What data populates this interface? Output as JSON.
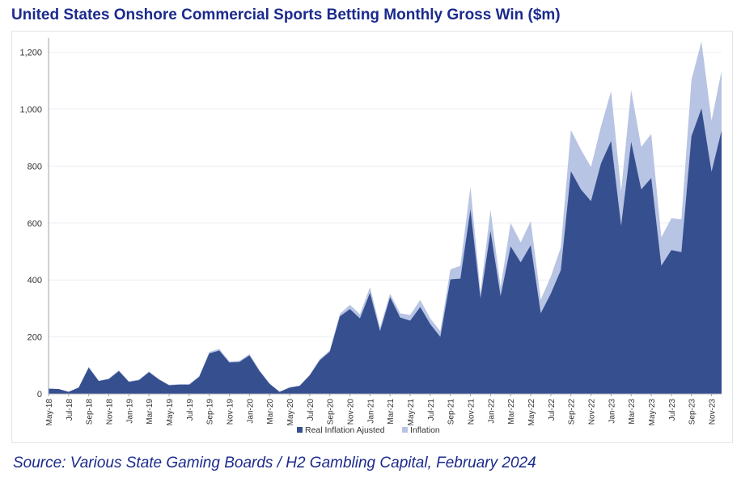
{
  "title": "United States Onshore Commercial Sports Betting Monthly Gross Win ($m)",
  "source": "Source: Various State Gaming Boards / H2 Gambling Capital, February 2024",
  "colors": {
    "real": "#354f8f",
    "inflation": "#b8c4e3",
    "title": "#1b2a8c",
    "grid": "#eceef3",
    "axis_text": "#333333"
  },
  "chart_data": {
    "type": "area",
    "stacked": true,
    "title": "United States Onshore Commercial Sports Betting Monthly Gross Win ($m)",
    "ylim": [
      0,
      1250
    ],
    "yticks": [
      0,
      200,
      400,
      600,
      800,
      1000,
      1200
    ],
    "ytick_labels": [
      "0",
      "200",
      "400",
      "600",
      "800",
      "1,000",
      "1,200"
    ],
    "grid": true,
    "legend_position": "bottom",
    "x": [
      "May-18",
      "Jun-18",
      "Jul-18",
      "Aug-18",
      "Sep-18",
      "Oct-18",
      "Nov-18",
      "Dec-18",
      "Jan-19",
      "Feb-19",
      "Mar-19",
      "Apr-19",
      "May-19",
      "Jun-19",
      "Jul-19",
      "Aug-19",
      "Sep-19",
      "Oct-19",
      "Nov-19",
      "Dec-19",
      "Jan-20",
      "Feb-20",
      "Mar-20",
      "Apr-20",
      "May-20",
      "Jun-20",
      "Jul-20",
      "Aug-20",
      "Sep-20",
      "Oct-20",
      "Nov-20",
      "Dec-20",
      "Jan-21",
      "Feb-21",
      "Mar-21",
      "Apr-21",
      "May-21",
      "Jun-21",
      "Jul-21",
      "Aug-21",
      "Sep-21",
      "Oct-21",
      "Nov-21",
      "Dec-21",
      "Jan-22",
      "Feb-22",
      "Mar-22",
      "Apr-22",
      "May-22",
      "Jun-22",
      "Jul-22",
      "Aug-22",
      "Sep-22",
      "Oct-22",
      "Nov-22",
      "Dec-22",
      "Jan-23",
      "Feb-23",
      "Mar-23",
      "Apr-23",
      "May-23",
      "Jun-23",
      "Jul-23",
      "Aug-23",
      "Sep-23",
      "Oct-23",
      "Nov-23",
      "Dec-23"
    ],
    "xtick_labels": [
      "May-18",
      "Jul-18",
      "Sep-18",
      "Nov-18",
      "Jan-19",
      "Mar-19",
      "May-19",
      "Jul-19",
      "Sep-19",
      "Nov-19",
      "Jan-20",
      "Mar-20",
      "May-20",
      "Jul-20",
      "Sep-20",
      "Nov-20",
      "Jan-21",
      "Mar-21",
      "May-21",
      "Jul-21",
      "Sep-21",
      "Nov-21",
      "Jan-22",
      "Mar-22",
      "May-22",
      "Jul-22",
      "Sep-22",
      "Nov-22",
      "Jan-23",
      "Mar-23",
      "May-23",
      "Jul-23",
      "Sep-23",
      "Nov-23"
    ],
    "series": [
      {
        "name": "Real Inflation Ajusted",
        "values": [
          18,
          17,
          7,
          22,
          92,
          45,
          52,
          80,
          42,
          48,
          76,
          50,
          30,
          32,
          32,
          60,
          142,
          152,
          110,
          112,
          135,
          80,
          35,
          7,
          22,
          28,
          65,
          118,
          148,
          272,
          298,
          265,
          355,
          220,
          340,
          268,
          257,
          305,
          245,
          200,
          402,
          405,
          648,
          335,
          572,
          343,
          518,
          462,
          522,
          283,
          352,
          435,
          782,
          718,
          677,
          810,
          888,
          590,
          885,
          718,
          758,
          450,
          505,
          498,
          905,
          1003,
          780,
          925
        ]
      },
      {
        "name": "Inflation",
        "values": [
          0,
          0,
          0,
          0,
          3,
          1,
          2,
          3,
          2,
          2,
          3,
          2,
          2,
          2,
          2,
          2,
          5,
          6,
          4,
          4,
          5,
          3,
          2,
          0,
          1,
          1,
          2,
          4,
          5,
          9,
          15,
          15,
          20,
          13,
          12,
          15,
          20,
          25,
          20,
          20,
          35,
          45,
          80,
          22,
          75,
          32,
          82,
          70,
          85,
          48,
          60,
          80,
          145,
          140,
          120,
          130,
          175,
          122,
          182,
          150,
          155,
          100,
          112,
          115,
          198,
          235,
          180,
          210
        ]
      }
    ]
  }
}
